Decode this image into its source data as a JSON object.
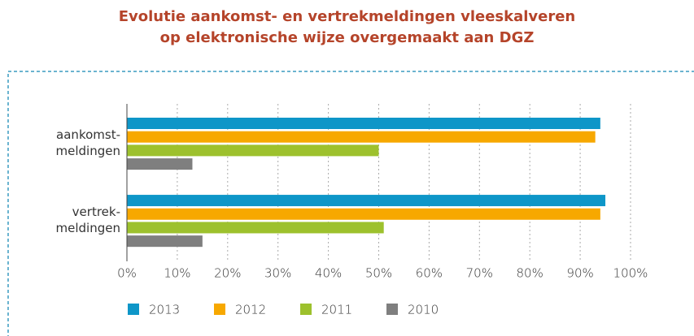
{
  "chart_data": {
    "type": "bar",
    "orientation": "horizontal",
    "title": "Evolutie aankomst- en vertrekmeldingen vleeskalveren\nop elektronische wijze overgemaakt aan DGZ",
    "categories": [
      "aankomst-\nmeldingen",
      "vertrek-\nmeldingen"
    ],
    "series": [
      {
        "name": "2013",
        "color": "#0e96c8",
        "values": [
          94,
          95
        ]
      },
      {
        "name": "2012",
        "color": "#f7a800",
        "values": [
          93,
          94
        ]
      },
      {
        "name": "2011",
        "color": "#9dc12d",
        "values": [
          50,
          51
        ]
      },
      {
        "name": "2010",
        "color": "#7f7f7f",
        "values": [
          13,
          15
        ]
      }
    ],
    "xlim": [
      0,
      100
    ],
    "xticks": [
      {
        "value": 0,
        "label": "0%"
      },
      {
        "value": 10,
        "label": "10%"
      },
      {
        "value": 20,
        "label": "20%"
      },
      {
        "value": 30,
        "label": "30%"
      },
      {
        "value": 40,
        "label": "40%"
      },
      {
        "value": 50,
        "label": "50%"
      },
      {
        "value": 60,
        "label": "60%"
      },
      {
        "value": 70,
        "label": "70%"
      },
      {
        "value": 80,
        "label": "80%"
      },
      {
        "value": 90,
        "label": "90%"
      },
      {
        "value": 100,
        "label": "100%"
      }
    ],
    "grid": true,
    "legend": "bottom"
  }
}
